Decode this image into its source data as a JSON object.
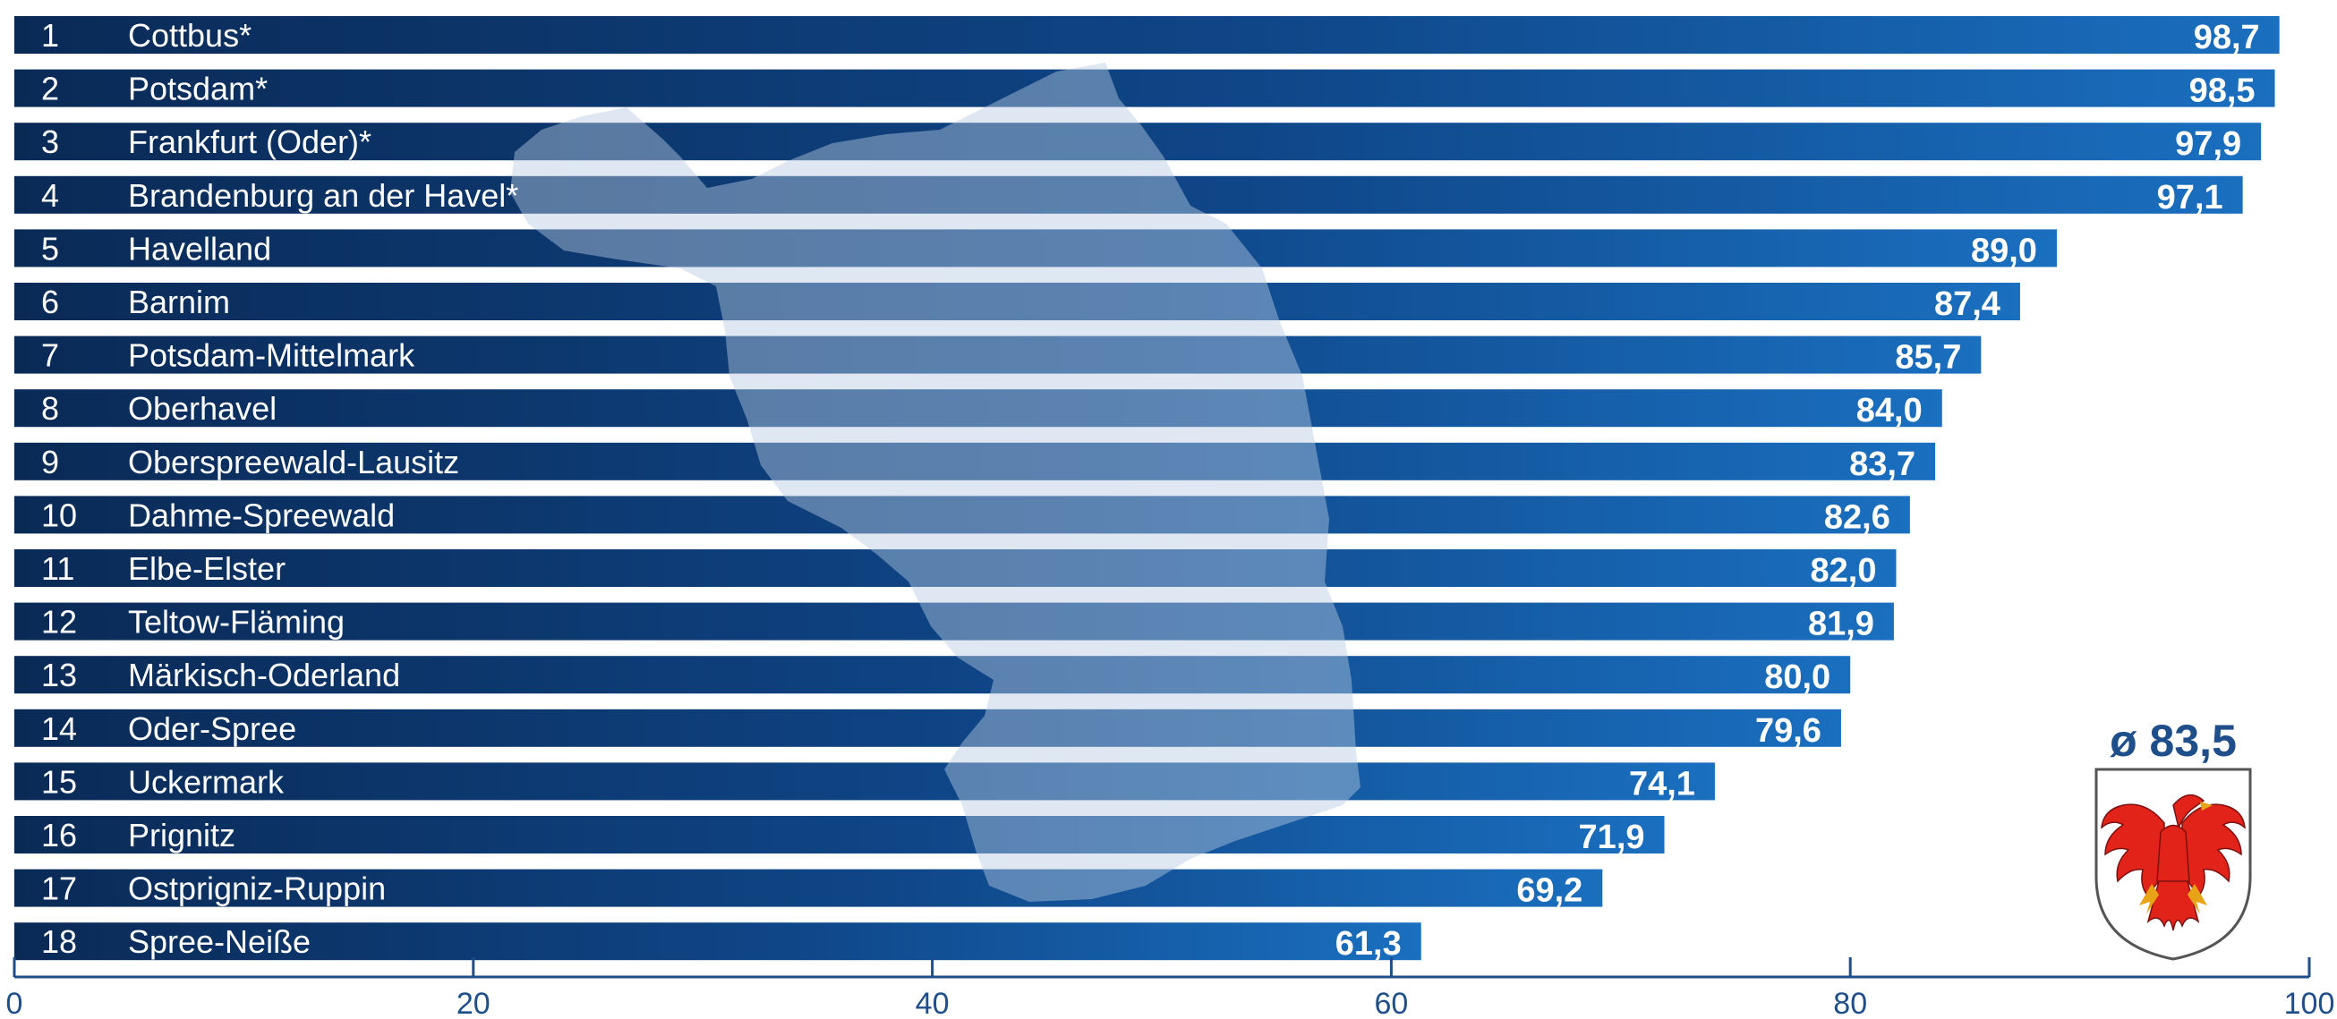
{
  "chart_data": {
    "type": "bar",
    "orientation": "horizontal",
    "xlim": [
      0,
      100
    ],
    "x_ticks": [
      "0",
      "20",
      "40",
      "60",
      "80",
      "100"
    ],
    "average_label": "ø 83,5",
    "average_value": 83.5,
    "emblem": "brandenburg-eagle-coat-of-arms",
    "background_shape": "brandenburg-map-silhouette",
    "colors": {
      "bar_dark": "#0a2a56",
      "bar_light": "#1a6fbf",
      "axis": "#1f4f8a",
      "eagle": "#e2231a"
    },
    "bars": [
      {
        "rank": "1",
        "name": "Cottbus*",
        "value": 98.7,
        "label": "98,7"
      },
      {
        "rank": "2",
        "name": "Potsdam*",
        "value": 98.5,
        "label": "98,5"
      },
      {
        "rank": "3",
        "name": "Frankfurt (Oder)*",
        "value": 97.9,
        "label": "97,9"
      },
      {
        "rank": "4",
        "name": "Brandenburg an der Havel*",
        "value": 97.1,
        "label": "97,1"
      },
      {
        "rank": "5",
        "name": "Havelland",
        "value": 89.0,
        "label": "89,0"
      },
      {
        "rank": "6",
        "name": "Barnim",
        "value": 87.4,
        "label": "87,4"
      },
      {
        "rank": "7",
        "name": "Potsdam-Mittelmark",
        "value": 85.7,
        "label": "85,7"
      },
      {
        "rank": "8",
        "name": "Oberhavel",
        "value": 84.0,
        "label": "84,0"
      },
      {
        "rank": "9",
        "name": "Oberspreewald-Lausitz",
        "value": 83.7,
        "label": "83,7"
      },
      {
        "rank": "10",
        "name": "Dahme-Spreewald",
        "value": 82.6,
        "label": "82,6"
      },
      {
        "rank": "11",
        "name": "Elbe-Elster",
        "value": 82.0,
        "label": "82,0"
      },
      {
        "rank": "12",
        "name": "Teltow-Fläming",
        "value": 81.9,
        "label": "81,9"
      },
      {
        "rank": "13",
        "name": "Märkisch-Oderland",
        "value": 80.0,
        "label": "80,0"
      },
      {
        "rank": "14",
        "name": "Oder-Spree",
        "value": 79.6,
        "label": "79,6"
      },
      {
        "rank": "15",
        "name": "Uckermark",
        "value": 74.1,
        "label": "74,1"
      },
      {
        "rank": "16",
        "name": "Prignitz",
        "value": 71.9,
        "label": "71,9"
      },
      {
        "rank": "17",
        "name": "Ostprigniz-Ruppin",
        "value": 69.2,
        "label": "69,2"
      },
      {
        "rank": "18",
        "name": "Spree-Neiße",
        "value": 61.3,
        "label": "61,3"
      }
    ]
  }
}
